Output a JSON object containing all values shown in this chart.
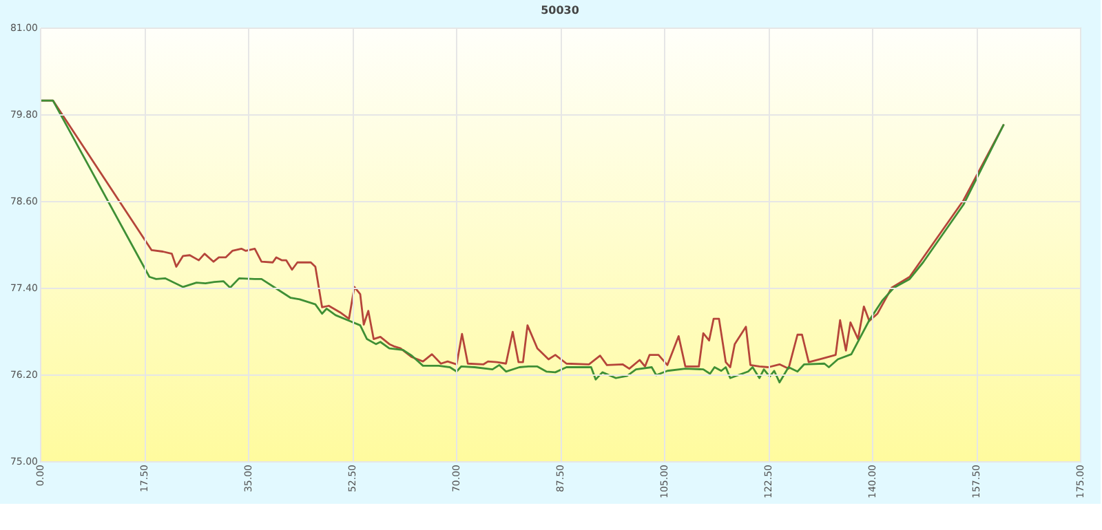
{
  "chart_data": {
    "type": "line",
    "title": "50030",
    "xlim": [
      0,
      175
    ],
    "xticks": [
      {
        "value": 0,
        "label": "0.00"
      },
      {
        "value": 17.5,
        "label": "17.50"
      },
      {
        "value": 35,
        "label": "35.00"
      },
      {
        "value": 52.5,
        "label": "52.50"
      },
      {
        "value": 70,
        "label": "70.00"
      },
      {
        "value": 87.5,
        "label": "87.50"
      },
      {
        "value": 105,
        "label": "105.00"
      },
      {
        "value": 122.5,
        "label": "122.50"
      },
      {
        "value": 140,
        "label": "140.00"
      },
      {
        "value": 157.5,
        "label": "157.50"
      },
      {
        "value": 175,
        "label": "175.00"
      }
    ],
    "ylim": [
      75,
      81
    ],
    "yticks": [
      {
        "value": 75,
        "label": "75.00"
      },
      {
        "value": 76.2,
        "label": "76.20"
      },
      {
        "value": 77.4,
        "label": "77.40"
      },
      {
        "value": 78.6,
        "label": "78.60"
      },
      {
        "value": 79.8,
        "label": "79.80"
      },
      {
        "value": 81,
        "label": "81.00"
      }
    ],
    "grid": true,
    "marker": "none",
    "line_style": "solid",
    "series": [
      {
        "color": "#b5453a",
        "x": [
          0,
          2.19,
          18.79,
          20.68,
          22.19,
          22.94,
          24.08,
          25.21,
          26.72,
          27.7,
          29.21,
          30.11,
          31.25,
          32.38,
          33.89,
          34.64,
          36.15,
          37.28,
          39.17,
          39.77,
          40.68,
          41.43,
          42.42,
          43.32,
          45.58,
          46.34,
          47.47,
          48.6,
          50.49,
          52.0,
          52.91,
          53.89,
          54.49,
          55.25,
          56.15,
          57.28,
          58.79,
          59.55,
          60.68,
          62.57,
          64.45,
          65.96,
          67.47,
          68.6,
          70.11,
          71.02,
          72.0,
          74.64,
          75.4,
          76.91,
          78.42,
          79.55,
          80.53,
          81.28,
          82.04,
          83.7,
          85.58,
          86.72,
          88.6,
          92.38,
          94.26,
          95.4,
          98.04,
          99.17,
          100.91,
          101.81,
          102.57,
          104.08,
          105.58,
          107.47,
          108.6,
          110.87,
          111.62,
          112.6,
          113.36,
          114.26,
          115.4,
          116.15,
          116.91,
          118.79,
          119.55,
          121.06,
          122.57,
          124.45,
          125.96,
          127.47,
          128.23,
          129.36,
          131.25,
          133.89,
          134.64,
          135.62,
          136.38,
          137.66,
          138.64,
          139.55,
          140.91,
          143.32,
          146.34,
          155.4,
          162.19
        ],
        "values": [
          79.99,
          79.99,
          77.92,
          77.9,
          77.87,
          77.69,
          77.84,
          77.85,
          77.78,
          77.87,
          77.76,
          77.82,
          77.82,
          77.91,
          77.94,
          77.91,
          77.94,
          77.76,
          77.75,
          77.82,
          77.78,
          77.78,
          77.65,
          77.75,
          77.75,
          77.69,
          77.13,
          77.15,
          77.06,
          76.97,
          77.41,
          77.31,
          76.89,
          77.08,
          76.69,
          76.72,
          76.62,
          76.59,
          76.56,
          76.44,
          76.38,
          76.48,
          76.35,
          76.38,
          76.34,
          76.76,
          76.35,
          76.34,
          76.38,
          76.37,
          76.35,
          76.79,
          76.37,
          76.37,
          76.88,
          76.56,
          76.41,
          76.47,
          76.35,
          76.34,
          76.46,
          76.33,
          76.34,
          76.28,
          76.4,
          76.31,
          76.47,
          76.47,
          76.33,
          76.73,
          76.31,
          76.31,
          76.77,
          76.67,
          76.97,
          76.97,
          76.37,
          76.3,
          76.62,
          76.86,
          76.33,
          76.31,
          76.3,
          76.34,
          76.28,
          76.75,
          76.75,
          76.37,
          76.41,
          76.47,
          76.95,
          76.53,
          76.92,
          76.69,
          77.14,
          76.94,
          77.04,
          77.4,
          77.55,
          78.61,
          79.66
        ]
      },
      {
        "color": "#3f8f35",
        "x": [
          0,
          2.19,
          18.42,
          19.55,
          21.06,
          24.08,
          26.34,
          27.85,
          29.36,
          30.87,
          32.0,
          33.51,
          36.15,
          37.28,
          39.55,
          42.19,
          43.7,
          46.34,
          47.47,
          48.23,
          49.74,
          53.89,
          55.02,
          56.53,
          57.28,
          58.79,
          61.06,
          62.57,
          64.45,
          67.09,
          68.98,
          70.11,
          70.87,
          73.13,
          76.15,
          77.28,
          78.42,
          80.68,
          82.19,
          83.7,
          85.21,
          86.72,
          88.6,
          92.75,
          93.51,
          94.64,
          96.91,
          98.79,
          100.3,
          102.94,
          103.7,
          105.58,
          108.6,
          111.62,
          112.75,
          113.51,
          114.64,
          115.4,
          116.15,
          119.17,
          119.92,
          121.06,
          121.81,
          122.79,
          123.55,
          124.45,
          125.96,
          127.47,
          128.6,
          132.0,
          132.75,
          134.26,
          136.53,
          139.55,
          141.81,
          143.7,
          146.34,
          148.6,
          155.4,
          162.19
        ],
        "values": [
          79.99,
          79.99,
          77.55,
          77.52,
          77.53,
          77.41,
          77.47,
          77.46,
          77.48,
          77.49,
          77.4,
          77.53,
          77.52,
          77.52,
          77.4,
          77.26,
          77.24,
          77.17,
          77.04,
          77.11,
          77.02,
          76.88,
          76.69,
          76.62,
          76.65,
          76.56,
          76.54,
          76.46,
          76.32,
          76.32,
          76.3,
          76.24,
          76.31,
          76.3,
          76.27,
          76.33,
          76.24,
          76.3,
          76.31,
          76.31,
          76.24,
          76.23,
          76.3,
          76.3,
          76.13,
          76.23,
          76.15,
          76.18,
          76.27,
          76.3,
          76.19,
          76.25,
          76.28,
          76.27,
          76.21,
          76.3,
          76.25,
          76.3,
          76.15,
          76.24,
          76.3,
          76.15,
          76.27,
          76.17,
          76.25,
          76.09,
          76.3,
          76.24,
          76.34,
          76.35,
          76.3,
          76.41,
          76.48,
          76.95,
          77.23,
          77.4,
          77.52,
          77.75,
          78.55,
          79.66
        ]
      }
    ]
  }
}
